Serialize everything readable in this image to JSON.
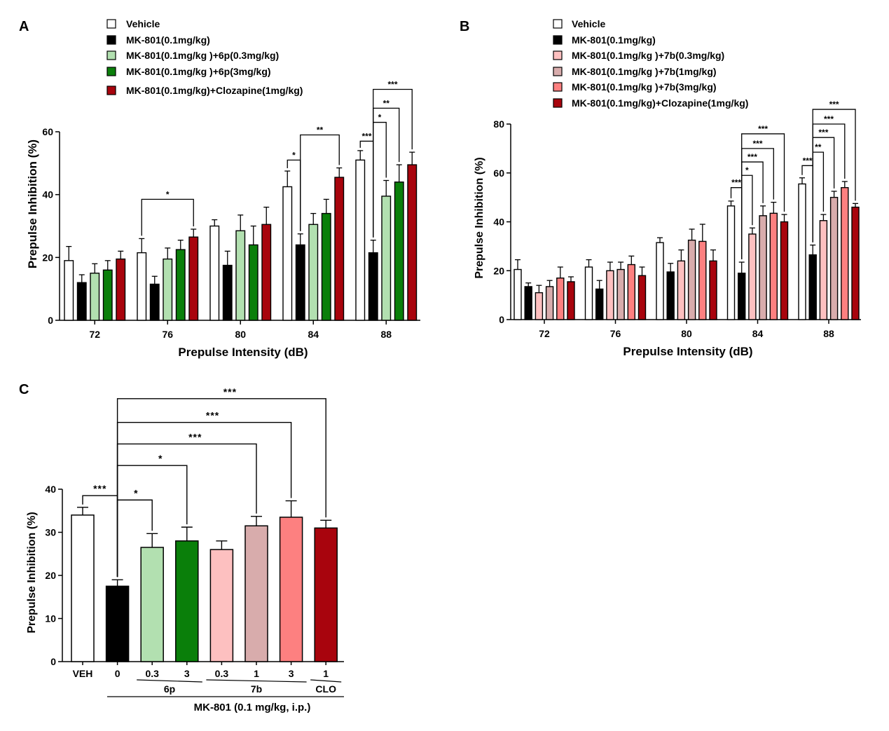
{
  "colors": {
    "vehicle": "#ffffff",
    "mk": "#000000",
    "p6_low": "#b2e0b0",
    "p6_high": "#0a7f0a",
    "clz": "#a8040d",
    "b7_low": "#fdc0c0",
    "b7_mid": "#d8acac",
    "b7_high": "#fd8080",
    "star_black": "#000000",
    "star_light_green": "#b2e0b0",
    "star_green": "#0a7f0a",
    "star_dark_red": "#8b0a1a",
    "star_pink_light": "#f2b6b6",
    "star_pink_mid": "#d8a0a0",
    "star_pink": "#f08080",
    "star_red": "#d80a14"
  },
  "chart_data": [
    {
      "panel": "A",
      "type": "bar",
      "xlabel": "Prepulse Intensity (dB)",
      "ylabel": "Prepulse Inhibition (%)",
      "ylim": [
        0,
        60
      ],
      "yticks": [
        "0",
        "20",
        "40",
        "60"
      ],
      "categories": [
        "72",
        "76",
        "80",
        "84",
        "88"
      ],
      "legend_position": "top",
      "series": [
        {
          "name": "Vehicle",
          "color_key": "vehicle",
          "values": [
            19,
            21.5,
            30,
            42.5,
            51
          ],
          "errors": [
            4.5,
            4.5,
            2,
            5,
            3
          ]
        },
        {
          "name": "MK-801(0.1mg/kg)",
          "color_key": "mk",
          "values": [
            12,
            11.5,
            17.5,
            24,
            21.5
          ],
          "errors": [
            2.5,
            2.5,
            4.5,
            3.5,
            4
          ]
        },
        {
          "name": "MK-801(0.1mg/kg )+6p(0.3mg/kg)",
          "color_key": "p6_low",
          "values": [
            15,
            19.5,
            28.5,
            30.5,
            39.5
          ],
          "errors": [
            3,
            3.5,
            5,
            3.5,
            5
          ]
        },
        {
          "name": "MK-801(0.1mg/kg )+6p(3mg/kg)",
          "color_key": "p6_high",
          "values": [
            16,
            22.5,
            24,
            34,
            44
          ],
          "errors": [
            3,
            3,
            6,
            4.5,
            5.5
          ]
        },
        {
          "name": "MK-801(0.1mg/kg)+Clozapine(1mg/kg)",
          "color_key": "clz",
          "values": [
            19.5,
            26.5,
            30.5,
            45.5,
            49.5
          ],
          "errors": [
            2.5,
            2.5,
            5.5,
            3,
            4
          ]
        }
      ],
      "annotations": [
        {
          "cat": 1,
          "from": 0,
          "to": 4,
          "stars": "*",
          "color_key": "star_dark_red",
          "top": 38.5
        },
        {
          "cat": 3,
          "from": 1,
          "to": 0,
          "stars": "*",
          "color_key": "star_black",
          "top": 51
        },
        {
          "cat": 3,
          "from": 1,
          "to": 4,
          "stars": "**",
          "color_key": "star_dark_red",
          "top": 59
        },
        {
          "cat": 4,
          "from": 1,
          "to": 0,
          "stars": "***",
          "color_key": "star_black",
          "top": 57
        },
        {
          "cat": 4,
          "from": 1,
          "to": 2,
          "stars": "*",
          "color_key": "star_light_green",
          "top": 63
        },
        {
          "cat": 4,
          "from": 1,
          "to": 3,
          "stars": "**",
          "color_key": "star_green",
          "top": 67.5
        },
        {
          "cat": 4,
          "from": 1,
          "to": 4,
          "stars": "***",
          "color_key": "star_dark_red",
          "top": 73.5
        }
      ]
    },
    {
      "panel": "B",
      "type": "bar",
      "xlabel": "Prepulse Intensity (dB)",
      "ylabel": "Prepulse Inhibition (%)",
      "ylim": [
        0,
        80
      ],
      "yticks": [
        "0",
        "20",
        "40",
        "60",
        "80"
      ],
      "categories": [
        "72",
        "76",
        "80",
        "84",
        "88"
      ],
      "legend_position": "top",
      "series": [
        {
          "name": "Vehicle",
          "color_key": "vehicle",
          "values": [
            20.5,
            21.5,
            31.5,
            46.5,
            55.5
          ],
          "errors": [
            4,
            3,
            2,
            2,
            2.5
          ]
        },
        {
          "name": "MK-801(0.1mg/kg)",
          "color_key": "mk",
          "values": [
            13.5,
            12.5,
            19.5,
            19,
            26.5
          ],
          "errors": [
            1.5,
            3.5,
            3.5,
            4.5,
            4
          ]
        },
        {
          "name": "MK-801(0.1mg/kg )+7b(0.3mg/kg)",
          "color_key": "b7_low",
          "values": [
            11,
            20,
            24,
            35,
            40.5
          ],
          "errors": [
            3,
            3.5,
            4.5,
            2.5,
            2.5
          ]
        },
        {
          "name": "MK-801(0.1mg/kg )+7b(1mg/kg)",
          "color_key": "b7_mid",
          "values": [
            13.5,
            20.5,
            32.5,
            42.5,
            50
          ],
          "errors": [
            2.5,
            3,
            4.5,
            4,
            2.5
          ]
        },
        {
          "name": "MK-801(0.1mg/kg )+7b(3mg/kg)",
          "color_key": "b7_high",
          "values": [
            17,
            22.5,
            32,
            43.5,
            54
          ],
          "errors": [
            4.5,
            3.5,
            7,
            4.5,
            2.5
          ]
        },
        {
          "name": "MK-801(0.1mg/kg)+Clozapine(1mg/kg)",
          "color_key": "clz",
          "values": [
            15.5,
            18,
            24,
            40,
            46
          ],
          "errors": [
            2,
            3.5,
            4.5,
            3,
            1.5
          ]
        }
      ],
      "annotations": [
        {
          "cat": 3,
          "from": 1,
          "to": 0,
          "stars": "***",
          "color_key": "star_black",
          "top": 54
        },
        {
          "cat": 3,
          "from": 1,
          "to": 2,
          "stars": "*",
          "color_key": "star_pink_light",
          "top": 59
        },
        {
          "cat": 3,
          "from": 1,
          "to": 3,
          "stars": "***",
          "color_key": "star_pink_light",
          "top": 64.5
        },
        {
          "cat": 3,
          "from": 1,
          "to": 4,
          "stars": "***",
          "color_key": "star_pink",
          "top": 70
        },
        {
          "cat": 3,
          "from": 1,
          "to": 5,
          "stars": "***",
          "color_key": "star_red",
          "top": 76
        },
        {
          "cat": 4,
          "from": 1,
          "to": 0,
          "stars": "***",
          "color_key": "star_black",
          "top": 63
        },
        {
          "cat": 4,
          "from": 1,
          "to": 2,
          "stars": "**",
          "color_key": "star_pink_light",
          "top": 68.5
        },
        {
          "cat": 4,
          "from": 1,
          "to": 3,
          "stars": "***",
          "color_key": "star_pink_light",
          "top": 74.5
        },
        {
          "cat": 4,
          "from": 1,
          "to": 4,
          "stars": "***",
          "color_key": "star_pink",
          "top": 80
        },
        {
          "cat": 4,
          "from": 1,
          "to": 5,
          "stars": "***",
          "color_key": "star_red",
          "top": 86
        }
      ]
    },
    {
      "panel": "C",
      "type": "bar",
      "xlabel": "MK-801 (0.1 mg/kg, i.p.)",
      "ylabel": "Prepulse Inhibition (%)",
      "ylim": [
        0,
        40
      ],
      "yticks": [
        "0",
        "10",
        "20",
        "30",
        "40"
      ],
      "categories": [
        "VEH",
        "0",
        "0.3",
        "3",
        "0.3",
        "1",
        "3",
        "1"
      ],
      "values": [
        34,
        17.5,
        26.5,
        28,
        26,
        31.5,
        33.5,
        31
      ],
      "errors": [
        1.8,
        1.5,
        3.2,
        3.2,
        2,
        2.2,
        3.8,
        1.8
      ],
      "color_keys": [
        "vehicle",
        "mk",
        "p6_low",
        "p6_high",
        "b7_low",
        "b7_mid",
        "b7_high",
        "clz"
      ],
      "groups": [
        {
          "label": "6p",
          "from": 2,
          "to": 3
        },
        {
          "label": "7b",
          "from": 4,
          "to": 6
        },
        {
          "label": "CLO",
          "from": 7,
          "to": 7
        }
      ],
      "annotations": [
        {
          "from": 1,
          "to": 0,
          "stars": "***",
          "color_key": "star_black",
          "top": 38.5
        },
        {
          "from": 1,
          "to": 2,
          "stars": "*",
          "color_key": "star_light_green",
          "top": 37.5
        },
        {
          "from": 1,
          "to": 3,
          "stars": "*",
          "color_key": "star_green",
          "top": 45.5
        },
        {
          "from": 1,
          "to": 5,
          "stars": "***",
          "color_key": "star_pink_mid",
          "top": 50.5
        },
        {
          "from": 1,
          "to": 6,
          "stars": "***",
          "color_key": "star_pink",
          "top": 55.5
        },
        {
          "from": 1,
          "to": 7,
          "stars": "***",
          "color_key": "star_dark_red",
          "top": 61
        }
      ]
    }
  ]
}
